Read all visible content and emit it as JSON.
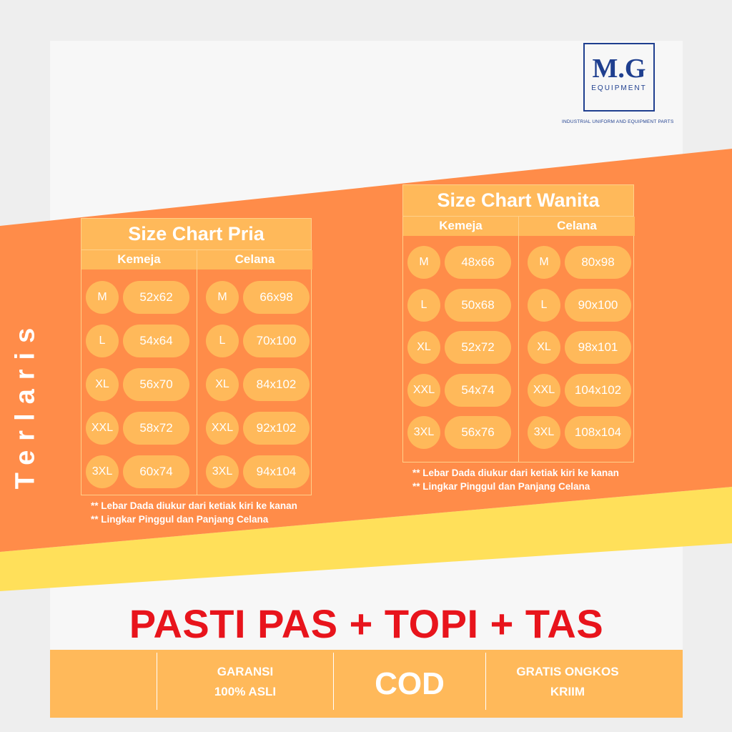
{
  "brand": {
    "logo_main": "M.G",
    "logo_sub": "EQUIPMENT",
    "tagline": "INDUSTRIAL UNIFORM AND EQUIPMENT PARTS"
  },
  "side_label": "Terlaris",
  "colors": {
    "orange": "#ff8c49",
    "light_orange": "#ffb95a",
    "yellow": "#ffe05a",
    "red": "#e8141c",
    "navy": "#1f3f8f"
  },
  "charts": {
    "pria": {
      "title": "Size Chart  Pria",
      "col1": "Kemeja",
      "col2": "Celana",
      "kemeja": [
        {
          "size": "M",
          "value": "52x62"
        },
        {
          "size": "L",
          "value": "54x64"
        },
        {
          "size": "XL",
          "value": "56x70"
        },
        {
          "size": "XXL",
          "value": "58x72"
        },
        {
          "size": "3XL",
          "value": "60x74"
        }
      ],
      "celana": [
        {
          "size": "M",
          "value": "66x98"
        },
        {
          "size": "L",
          "value": "70x100"
        },
        {
          "size": "XL",
          "value": "84x102"
        },
        {
          "size": "XXL",
          "value": "92x102"
        },
        {
          "size": "3XL",
          "value": "94x104"
        }
      ],
      "note1": "** Lebar Dada diukur dari ketiak kiri ke kanan",
      "note2": "** Lingkar Pinggul dan Panjang Celana"
    },
    "wanita": {
      "title": "Size Chart  Wanita",
      "col1": "Kemeja",
      "col2": "Celana",
      "kemeja": [
        {
          "size": "M",
          "value": "48x66"
        },
        {
          "size": "L",
          "value": "50x68"
        },
        {
          "size": "XL",
          "value": "52x72"
        },
        {
          "size": "XXL",
          "value": "54x74"
        },
        {
          "size": "3XL",
          "value": "56x76"
        }
      ],
      "celana": [
        {
          "size": "M",
          "value": "80x98"
        },
        {
          "size": "L",
          "value": "90x100"
        },
        {
          "size": "XL",
          "value": "98x101"
        },
        {
          "size": "XXL",
          "value": "104x102"
        },
        {
          "size": "3XL",
          "value": "108x104"
        }
      ],
      "note1": "** Lebar Dada diukur dari ketiak kiri ke kanan",
      "note2": "** Lingkar Pinggul dan Panjang Celana"
    }
  },
  "headline": "PASTI PAS + TOPI + TAS",
  "footer": {
    "garansi_line1": "GARANSI",
    "garansi_line2": "100% ASLI",
    "cod": "COD",
    "gratis_line1": "GRATIS ONGKOS",
    "gratis_line2": "KRIIM"
  }
}
